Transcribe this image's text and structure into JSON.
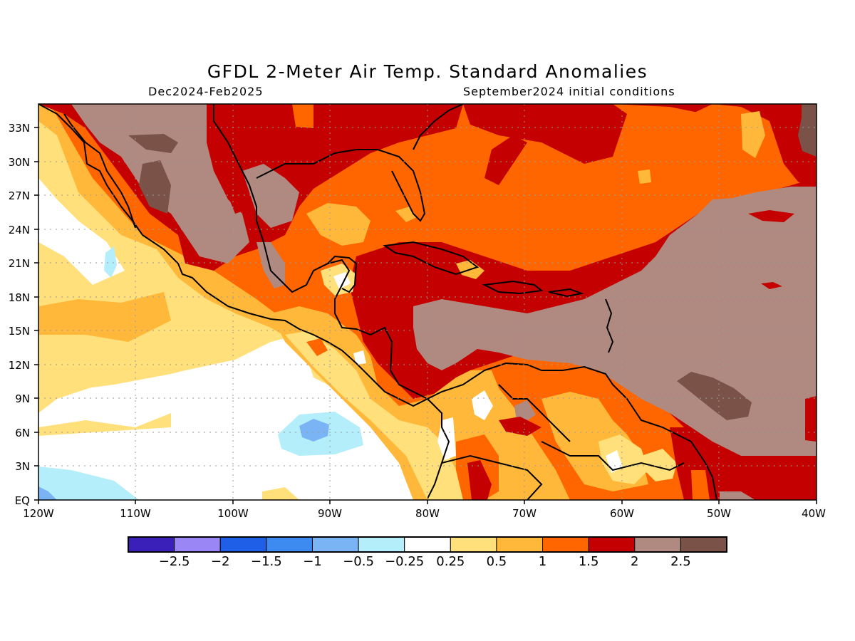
{
  "title": "GFDL 2-Meter Air Temp. Standard Anomalies",
  "subtitle_left": "Dec2024-Feb2025",
  "subtitle_right": "September2024 initial conditions",
  "map": {
    "lon_range": [
      -120,
      -40
    ],
    "lat_range": [
      0,
      35
    ],
    "lat_labels": [
      "33N",
      "30N",
      "27N",
      "24N",
      "21N",
      "18N",
      "15N",
      "12N",
      "9N",
      "6N",
      "3N",
      "EQ"
    ],
    "lon_labels": [
      "120W",
      "110W",
      "100W",
      "90W",
      "80W",
      "70W",
      "60W",
      "50W",
      "40W"
    ],
    "grid": true
  },
  "colorbar": {
    "colors": [
      "#3a1fb8",
      "#9a87f5",
      "#1f5fe8",
      "#3d8bf0",
      "#7ab4f5",
      "#b4eefa",
      "#ffffff",
      "#ffe07a",
      "#ffb83a",
      "#ff6600",
      "#c40000",
      "#b08a80",
      "#7a5247"
    ],
    "labels": [
      "-2.5",
      "-2",
      "-1.5",
      "-1",
      "-0.5",
      "-0.25",
      "0.25",
      "0.5",
      "1",
      "1.5",
      "2",
      "2.5"
    ]
  }
}
